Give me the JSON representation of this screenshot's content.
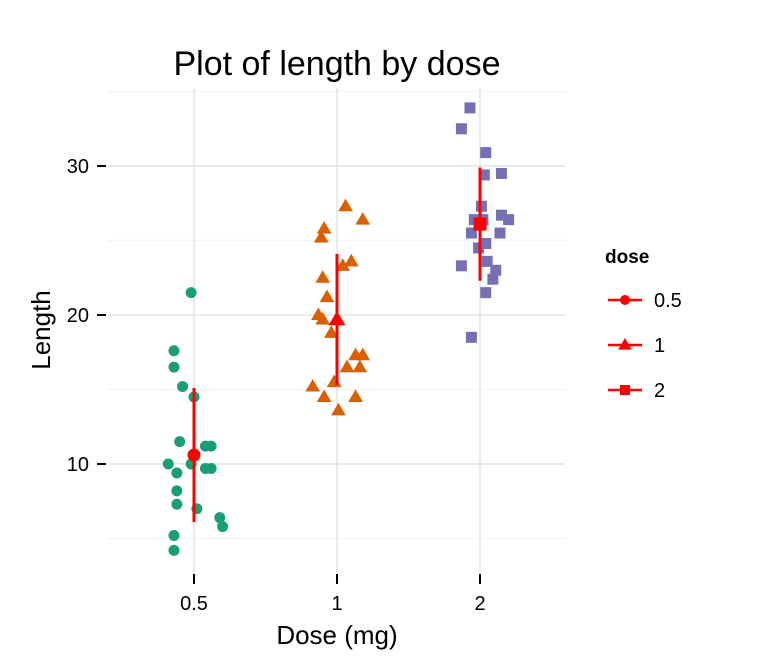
{
  "chart_data": {
    "type": "scatter",
    "title": "Plot of length  by dose",
    "xlabel": "Dose (mg)",
    "ylabel": "Length",
    "categories": [
      "0.5",
      "1",
      "2"
    ],
    "ylim": [
      3,
      36
    ],
    "yticks": [
      10,
      20,
      30
    ],
    "yminor": [
      5,
      15,
      25,
      35
    ],
    "grid": true,
    "legend": {
      "title": "dose",
      "placement": "right",
      "entries": [
        {
          "label": "0.5",
          "shape": "circle"
        },
        {
          "label": "1",
          "shape": "triangle"
        },
        {
          "label": "2",
          "shape": "square"
        }
      ]
    },
    "colors": {
      "0.5": "#1B9E77",
      "1": "#D95F02",
      "2": "#7570B3",
      "summary": "#FF0000",
      "grid_major": "#E3E3E3",
      "grid_minor": "#F3F3F3"
    },
    "series": [
      {
        "name": "0.5",
        "shape": "circle",
        "points": [
          {
            "x": 0.49,
            "y": 21.5
          },
          {
            "x": 0.43,
            "y": 17.6
          },
          {
            "x": 0.43,
            "y": 16.5
          },
          {
            "x": 0.46,
            "y": 15.2
          },
          {
            "x": 0.5,
            "y": 14.5
          },
          {
            "x": 0.45,
            "y": 11.5
          },
          {
            "x": 0.54,
            "y": 11.2
          },
          {
            "x": 0.56,
            "y": 11.2
          },
          {
            "x": 0.41,
            "y": 10.0
          },
          {
            "x": 0.49,
            "y": 10.0
          },
          {
            "x": 0.44,
            "y": 9.4
          },
          {
            "x": 0.54,
            "y": 9.7
          },
          {
            "x": 0.56,
            "y": 9.7
          },
          {
            "x": 0.44,
            "y": 8.2
          },
          {
            "x": 0.44,
            "y": 7.3
          },
          {
            "x": 0.51,
            "y": 7.0
          },
          {
            "x": 0.59,
            "y": 6.4
          },
          {
            "x": 0.6,
            "y": 5.8
          },
          {
            "x": 0.43,
            "y": 5.2
          },
          {
            "x": 0.43,
            "y": 4.2
          }
        ],
        "mean": 10.6,
        "sd": 4.5
      },
      {
        "name": "1",
        "shape": "triangle",
        "points": [
          {
            "x": 1.06,
            "y": 27.3
          },
          {
            "x": 1.18,
            "y": 26.4
          },
          {
            "x": 0.91,
            "y": 25.8
          },
          {
            "x": 0.89,
            "y": 25.2
          },
          {
            "x": 1.1,
            "y": 23.6
          },
          {
            "x": 1.04,
            "y": 23.3
          },
          {
            "x": 0.9,
            "y": 22.5
          },
          {
            "x": 0.93,
            "y": 21.2
          },
          {
            "x": 0.87,
            "y": 20.0
          },
          {
            "x": 0.9,
            "y": 19.7
          },
          {
            "x": 0.96,
            "y": 18.8
          },
          {
            "x": 1.13,
            "y": 17.3
          },
          {
            "x": 1.18,
            "y": 17.3
          },
          {
            "x": 1.07,
            "y": 16.5
          },
          {
            "x": 1.16,
            "y": 16.5
          },
          {
            "x": 0.98,
            "y": 15.5
          },
          {
            "x": 0.83,
            "y": 15.2
          },
          {
            "x": 0.91,
            "y": 14.5
          },
          {
            "x": 1.13,
            "y": 14.5
          },
          {
            "x": 1.01,
            "y": 13.6
          }
        ],
        "mean": 19.7,
        "sd": 4.4
      },
      {
        "name": "2",
        "shape": "square",
        "points": [
          {
            "x": 1.93,
            "y": 33.9
          },
          {
            "x": 1.87,
            "y": 32.5
          },
          {
            "x": 2.04,
            "y": 30.9
          },
          {
            "x": 2.03,
            "y": 29.4
          },
          {
            "x": 2.15,
            "y": 29.5
          },
          {
            "x": 2.01,
            "y": 27.3
          },
          {
            "x": 2.15,
            "y": 26.7
          },
          {
            "x": 2.2,
            "y": 26.4
          },
          {
            "x": 1.96,
            "y": 26.4
          },
          {
            "x": 2.02,
            "y": 26.4
          },
          {
            "x": 1.94,
            "y": 25.5
          },
          {
            "x": 2.14,
            "y": 25.5
          },
          {
            "x": 2.04,
            "y": 24.8
          },
          {
            "x": 1.99,
            "y": 24.5
          },
          {
            "x": 1.87,
            "y": 23.3
          },
          {
            "x": 2.05,
            "y": 23.6
          },
          {
            "x": 2.11,
            "y": 23.0
          },
          {
            "x": 2.09,
            "y": 22.4
          },
          {
            "x": 2.04,
            "y": 21.5
          },
          {
            "x": 1.94,
            "y": 18.5
          }
        ],
        "mean": 26.1,
        "sd": 3.8
      }
    ]
  }
}
